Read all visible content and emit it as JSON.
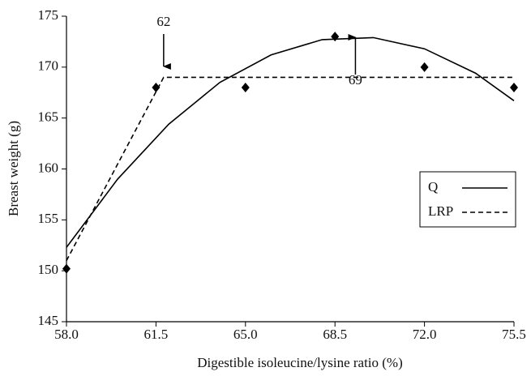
{
  "chart_data": {
    "type": "line",
    "x_label": "Digestible isoleucine/lysine ratio (%)",
    "y_label": "Breast weight (g)",
    "xlim": [
      58,
      75.5
    ],
    "xticks": [
      {
        "value": 58,
        "label": "58.0"
      },
      {
        "value": 61.5,
        "label": "61.5"
      },
      {
        "value": 65,
        "label": "65.0"
      },
      {
        "value": 68.5,
        "label": "68.5"
      },
      {
        "value": 72,
        "label": "72.0"
      },
      {
        "value": 75.5,
        "label": "75.5"
      }
    ],
    "ylim": [
      145,
      175
    ],
    "yticks": [
      145,
      150,
      155,
      160,
      165,
      170,
      175
    ],
    "grid": false,
    "legend": "right",
    "series": [
      {
        "name": "Q",
        "color": "#000000",
        "dash": false,
        "x": [
          58,
          60,
          62,
          64,
          66,
          68,
          70,
          72,
          74,
          75.5
        ],
        "values": [
          152.3,
          159.0,
          164.4,
          168.5,
          171.2,
          172.7,
          172.9,
          171.8,
          169.4,
          166.7
        ]
      },
      {
        "name": "LRP",
        "color": "#000000",
        "dash": true,
        "x": [
          58,
          61.8,
          75.5
        ],
        "values": [
          151,
          169,
          169
        ]
      }
    ],
    "observed": {
      "color": "#000000",
      "x": [
        58,
        61.5,
        65,
        68.5,
        72,
        75.5
      ],
      "values": [
        150.2,
        168,
        168,
        173,
        170,
        168
      ]
    },
    "annotations": [
      {
        "text": "62",
        "x": 61.8,
        "direction": "down"
      },
      {
        "text": "69",
        "x": 69.3,
        "direction": "up"
      }
    ]
  }
}
